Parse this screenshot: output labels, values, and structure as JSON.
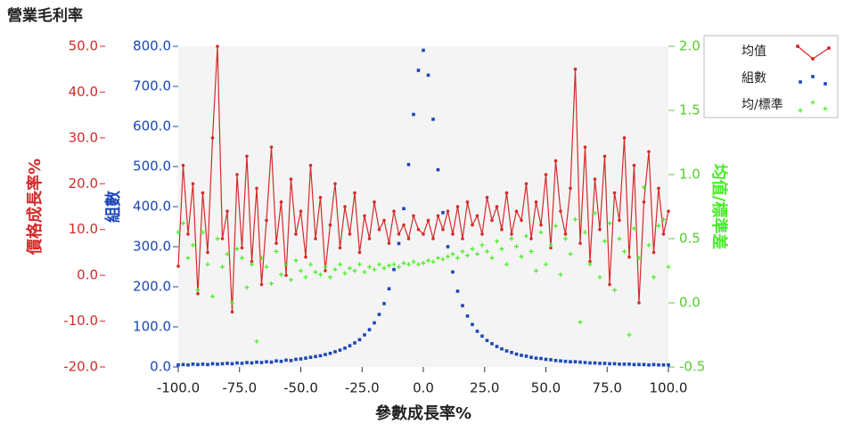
{
  "chart_data": {
    "type": "line",
    "title": "營業毛利率",
    "x_label": "參數成長率%",
    "y_label": "價格成長率%",
    "y2_label": "組數",
    "y3_label": "均值/標準差",
    "legend": "top-right",
    "x": [
      -100,
      -98,
      -96,
      -94,
      -92,
      -90,
      -88,
      -86,
      -84,
      -82,
      -80,
      -78,
      -76,
      -74,
      -72,
      -70,
      -68,
      -66,
      -64,
      -62,
      -60,
      -58,
      -56,
      -54,
      -52,
      -50,
      -48,
      -46,
      -44,
      -42,
      -40,
      -38,
      -36,
      -34,
      -32,
      -30,
      -28,
      -26,
      -24,
      -22,
      -20,
      -18,
      -16,
      -14,
      -12,
      -10,
      -8,
      -6,
      -4,
      -2,
      0,
      2,
      4,
      6,
      8,
      10,
      12,
      14,
      16,
      18,
      20,
      22,
      24,
      26,
      28,
      30,
      32,
      34,
      36,
      38,
      40,
      42,
      44,
      46,
      48,
      50,
      52,
      54,
      56,
      58,
      60,
      62,
      64,
      66,
      68,
      70,
      72,
      74,
      76,
      78,
      80,
      82,
      84,
      86,
      88,
      90,
      92,
      94,
      96,
      98,
      100
    ],
    "xlim": [
      -100,
      100
    ],
    "xticks": [
      {
        "value": -100,
        "label": "-100.0"
      },
      {
        "value": -75,
        "label": "-75.0"
      },
      {
        "value": -50,
        "label": "-50.0"
      },
      {
        "value": -25,
        "label": "-25.0"
      },
      {
        "value": 0,
        "label": "0.0"
      },
      {
        "value": 25,
        "label": "25.0"
      },
      {
        "value": 50,
        "label": "50.0"
      },
      {
        "value": 75,
        "label": "75.0"
      },
      {
        "value": 100,
        "label": "100.0"
      }
    ],
    "ylim": [
      -20,
      50
    ],
    "yticks": [
      {
        "value": 50,
        "label": "50.0"
      },
      {
        "value": 40,
        "label": "40.0"
      },
      {
        "value": 30,
        "label": "30.0"
      },
      {
        "value": 20,
        "label": "20.0"
      },
      {
        "value": 10,
        "label": "10.0"
      },
      {
        "value": 0,
        "label": "0.0"
      },
      {
        "value": -10,
        "label": "-10.0"
      },
      {
        "value": -20,
        "label": "-20.0"
      }
    ],
    "y2lim": [
      0,
      800
    ],
    "y2ticks": [
      {
        "value": 800,
        "label": "800.0"
      },
      {
        "value": 700,
        "label": "700.0"
      },
      {
        "value": 600,
        "label": "600.0"
      },
      {
        "value": 500,
        "label": "500.0"
      },
      {
        "value": 400,
        "label": "400.0"
      },
      {
        "value": 300,
        "label": "300.0"
      },
      {
        "value": 200,
        "label": "200.0"
      },
      {
        "value": 100,
        "label": "100.0"
      },
      {
        "value": 0,
        "label": "0.0"
      }
    ],
    "y3lim": [
      -0.5,
      2
    ],
    "y3ticks": [
      {
        "value": 2,
        "label": "2.0"
      },
      1.5,
      {
        "value": 1,
        "label": "1.0"
      },
      0.5,
      {
        "value": 0,
        "label": "0.0"
      },
      -0.5
    ],
    "series": [
      {
        "name": "均值",
        "color": "#d42a2a",
        "axis": "y",
        "style": "line",
        "values": [
          2,
          24,
          9,
          20,
          -4,
          18,
          5,
          30,
          50,
          8,
          14,
          -8,
          22,
          6,
          26,
          3,
          19,
          -2,
          12,
          28,
          7,
          16,
          0,
          21,
          9,
          14,
          4,
          24,
          8,
          17,
          1,
          11,
          20,
          6,
          15,
          9,
          18,
          5,
          13,
          8,
          16,
          10,
          12,
          7,
          14,
          9,
          11,
          8,
          13,
          10,
          9,
          12,
          8,
          13,
          10,
          14,
          9,
          15,
          8,
          16,
          11,
          13,
          9,
          17,
          12,
          15,
          10,
          18,
          9,
          14,
          12,
          20,
          8,
          16,
          11,
          22,
          6,
          25,
          14,
          9,
          19,
          45,
          7,
          28,
          3,
          21,
          10,
          26,
          -2,
          18,
          12,
          30,
          4,
          24,
          -6,
          16,
          27,
          5,
          19,
          9,
          14
        ]
      },
      {
        "name": "組數",
        "color": "#1b46b8",
        "axis": "y2",
        "style": "dot",
        "values": [
          5,
          6,
          5,
          7,
          6,
          7,
          6,
          8,
          7,
          8,
          9,
          8,
          10,
          9,
          11,
          10,
          12,
          11,
          13,
          12,
          15,
          14,
          17,
          16,
          19,
          20,
          22,
          24,
          26,
          28,
          31,
          34,
          38,
          42,
          47,
          53,
          60,
          68,
          80,
          93,
          110,
          131,
          158,
          195,
          243,
          308,
          395,
          505,
          630,
          740,
          790,
          728,
          618,
          492,
          385,
          300,
          237,
          189,
          153,
          127,
          106,
          89,
          77,
          66,
          58,
          51,
          45,
          40,
          36,
          32,
          29,
          27,
          24,
          22,
          21,
          19,
          18,
          16,
          15,
          14,
          13,
          13,
          12,
          11,
          10,
          10,
          9,
          9,
          8,
          8,
          7,
          7,
          7,
          6,
          6,
          6,
          5,
          6,
          5,
          5,
          5
        ]
      },
      {
        "name": "均/標準",
        "color": "#44ee22",
        "axis": "y3",
        "style": "plus",
        "values": [
          0.55,
          0.62,
          0.35,
          0.45,
          0.1,
          0.55,
          0.3,
          0.05,
          0.5,
          0.28,
          0.38,
          0,
          0.42,
          0.35,
          0.12,
          0.3,
          -0.3,
          0.35,
          0.28,
          0.15,
          0.4,
          0.22,
          0.3,
          0.18,
          0.33,
          0.25,
          0.2,
          0.3,
          0.24,
          0.22,
          0.28,
          0.2,
          0.26,
          0.3,
          0.23,
          0.27,
          0.25,
          0.3,
          0.24,
          0.28,
          0.26,
          0.3,
          0.27,
          0.29,
          0.3,
          0.28,
          0.31,
          0.3,
          0.32,
          0.3,
          0.31,
          0.33,
          0.32,
          0.35,
          0.34,
          0.36,
          0.38,
          0.35,
          0.4,
          0.37,
          0.42,
          0.38,
          0.45,
          0.4,
          0.35,
          0.48,
          0.42,
          0.3,
          0.5,
          0.44,
          0.36,
          0.52,
          0.4,
          0.25,
          0.55,
          0.3,
          0.45,
          0.6,
          0.22,
          0.5,
          0.38,
          0.65,
          -0.15,
          0.55,
          0.3,
          0.7,
          0.2,
          0.48,
          0.62,
          0.1,
          0.5,
          0.4,
          -0.25,
          0.58,
          0.35,
          0.9,
          0.45,
          0.2,
          0.6,
          0.65,
          0.28
        ]
      }
    ]
  }
}
